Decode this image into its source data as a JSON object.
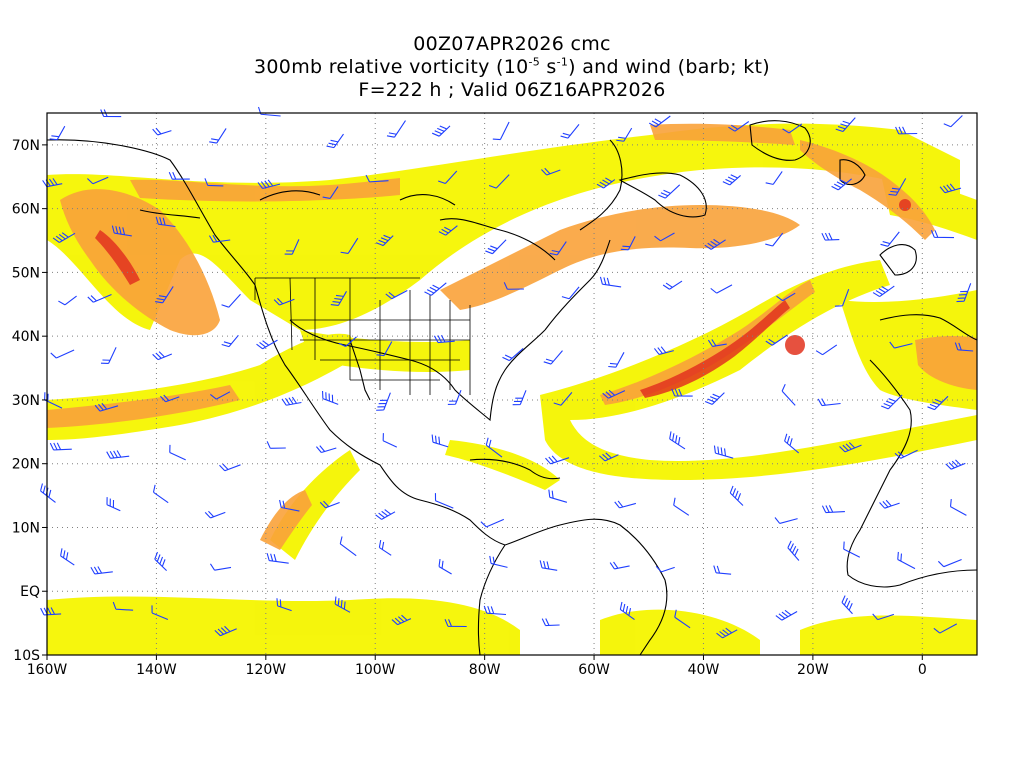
{
  "titles": {
    "line1": "00Z07APR2026 cmc",
    "line2_prefix": "300mb relative vorticity (10",
    "line2_exp1": "-5",
    "line2_mid": " s",
    "line2_exp2": "-1",
    "line2_suffix": ") and wind (barb; kt)",
    "line3": "F=222 h ; Valid 06Z16APR2026"
  },
  "map": {
    "lon_range": [
      -160,
      10
    ],
    "lat_range": [
      -10,
      75
    ],
    "lon_ticks": [
      "160W",
      "140W",
      "120W",
      "100W",
      "80W",
      "60W",
      "40W",
      "20W",
      "0"
    ],
    "lat_ticks": [
      "70N",
      "60N",
      "50N",
      "40N",
      "30N",
      "20N",
      "10N",
      "EQ",
      "10S"
    ],
    "grid": true,
    "colors": {
      "shade_light": "#f5f500",
      "shade_mid": "#ffd23a",
      "shade_orange": "#f9a23a",
      "shade_dark": "#f0682a",
      "shade_core": "#e2331e",
      "barb": "#1f3fff",
      "coast": "#000000",
      "grid": "#808080"
    }
  }
}
